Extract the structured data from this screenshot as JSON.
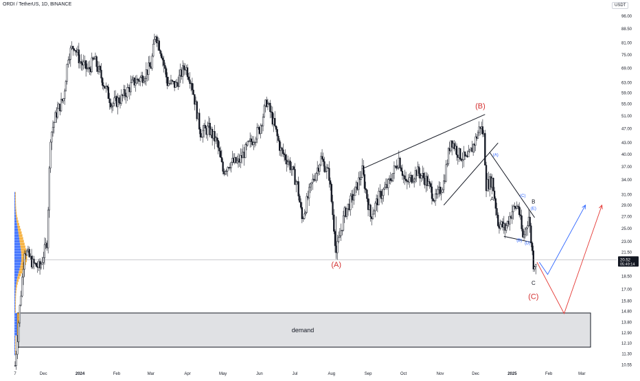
{
  "header": {
    "symbol_line": "ORDI / TetherUS, 1D, BINANCE",
    "currency": "USDT"
  },
  "price_tag": {
    "price": "20.52",
    "countdown": "05:49:14"
  },
  "chart_data": {
    "type": "candlestick",
    "title": "ORDI / TetherUS, 1D, BINANCE",
    "y_axis": {
      "scale": "log",
      "ticks": [
        "96.00",
        "88.50",
        "81.00",
        "75.00",
        "69.00",
        "63.00",
        "59.00",
        "55.00",
        "51.00",
        "47.00",
        "43.00",
        "40.00",
        "37.00",
        "34.00",
        "31.00",
        "29.00",
        "27.00",
        "25.00",
        "23.00",
        "21.50",
        "20.00",
        "18.50",
        "17.00",
        "15.80",
        "14.80",
        "13.80",
        "12.90",
        "12.10",
        "11.30",
        "10.55"
      ],
      "range": [
        10.3,
        100
      ]
    },
    "x_axis": {
      "ticks": [
        "7",
        "Dec",
        "2024",
        "Feb",
        "Mar",
        "Apr",
        "May",
        "Jun",
        "Jul",
        "Aug",
        "Sep",
        "Oct",
        "Nov",
        "Dec",
        "2025",
        "Feb",
        "Mar"
      ],
      "range": [
        "2023-11-07",
        "2025-03-20"
      ]
    },
    "grid": false,
    "last_price": 20.52,
    "approx_daily_close_path": [
      [
        "2023-11-07",
        10.5
      ],
      [
        "2023-11-15",
        22.0
      ],
      [
        "2023-11-22",
        20.0
      ],
      [
        "2023-11-28",
        19.5
      ],
      [
        "2023-12-04",
        23.0
      ],
      [
        "2023-12-07",
        45.0
      ],
      [
        "2023-12-12",
        52.0
      ],
      [
        "2023-12-18",
        57.0
      ],
      [
        "2023-12-22",
        75.0
      ],
      [
        "2023-12-27",
        80.0
      ],
      [
        "2024-01-01",
        72.0
      ],
      [
        "2024-01-08",
        68.0
      ],
      [
        "2024-01-13",
        73.0
      ],
      [
        "2024-01-20",
        64.0
      ],
      [
        "2024-01-28",
        55.0
      ],
      [
        "2024-02-05",
        57.0
      ],
      [
        "2024-02-15",
        63.0
      ],
      [
        "2024-02-22",
        65.0
      ],
      [
        "2024-03-01",
        70.0
      ],
      [
        "2024-03-05",
        86.0
      ],
      [
        "2024-03-10",
        76.0
      ],
      [
        "2024-03-15",
        63.0
      ],
      [
        "2024-03-22",
        62.0
      ],
      [
        "2024-03-30",
        70.0
      ],
      [
        "2024-04-04",
        64.0
      ],
      [
        "2024-04-12",
        46.0
      ],
      [
        "2024-04-19",
        47.0
      ],
      [
        "2024-04-26",
        43.0
      ],
      [
        "2024-05-01",
        36.0
      ],
      [
        "2024-05-07",
        38.0
      ],
      [
        "2024-05-14",
        38.0
      ],
      [
        "2024-05-22",
        42.0
      ],
      [
        "2024-06-01",
        47.0
      ],
      [
        "2024-06-07",
        56.0
      ],
      [
        "2024-06-12",
        50.0
      ],
      [
        "2024-06-19",
        41.0
      ],
      [
        "2024-06-26",
        38.0
      ],
      [
        "2024-07-03",
        33.0
      ],
      [
        "2024-07-07",
        26.5
      ],
      [
        "2024-07-15",
        33.0
      ],
      [
        "2024-07-23",
        39.0
      ],
      [
        "2024-07-30",
        35.0
      ],
      [
        "2024-08-05",
        21.5
      ],
      [
        "2024-08-12",
        27.5
      ],
      [
        "2024-08-20",
        31.0
      ],
      [
        "2024-08-27",
        36.0
      ],
      [
        "2024-09-03",
        27.0
      ],
      [
        "2024-09-10",
        30.5
      ],
      [
        "2024-09-18",
        33.0
      ],
      [
        "2024-09-27",
        39.0
      ],
      [
        "2024-10-03",
        33.0
      ],
      [
        "2024-10-12",
        36.0
      ],
      [
        "2024-10-20",
        34.0
      ],
      [
        "2024-10-28",
        30.0
      ],
      [
        "2024-11-04",
        33.5
      ],
      [
        "2024-11-10",
        44.0
      ],
      [
        "2024-11-17",
        40.0
      ],
      [
        "2024-11-24",
        38.5
      ],
      [
        "2024-12-01",
        44.0
      ],
      [
        "2024-12-05",
        48.0
      ],
      [
        "2024-12-08",
        45.0
      ],
      [
        "2024-12-10",
        33.0
      ],
      [
        "2024-12-15",
        34.0
      ],
      [
        "2024-12-20",
        26.0
      ],
      [
        "2024-12-26",
        25.0
      ],
      [
        "2025-01-01",
        28.0
      ],
      [
        "2025-01-06",
        29.0
      ],
      [
        "2025-01-10",
        23.5
      ],
      [
        "2025-01-15",
        27.0
      ],
      [
        "2025-01-19",
        20.0
      ],
      [
        "2025-01-22",
        20.52
      ]
    ],
    "demand_zone": {
      "label": "demand",
      "top": 14.65,
      "bottom": 11.8,
      "from": "2023-11-07",
      "to": "2025-03-20"
    },
    "wave_labels": [
      {
        "text": "(A)",
        "color": "#d32f2f",
        "date": "2024-08-05",
        "price": 19.6
      },
      {
        "text": "(B)",
        "color": "#d32f2f",
        "date": "2024-12-05",
        "price": 53.5
      },
      {
        "text": "(C)",
        "color": "#d32f2f",
        "date": "2025-01-19",
        "price": 16.0
      },
      {
        "text": "A",
        "color": "#131722",
        "date": "2024-12-15",
        "price": 29.8
      },
      {
        "text": "B",
        "color": "#131722",
        "date": "2025-01-19",
        "price": 29.3
      },
      {
        "text": "C",
        "color": "#131722",
        "date": "2025-01-19",
        "price": 17.5
      },
      {
        "text": "(A)",
        "color": "#2962ff",
        "date": "2024-12-18",
        "price": 39.5
      },
      {
        "text": "(B)",
        "color": "#2962ff",
        "date": "2025-01-07",
        "price": 23.0
      },
      {
        "text": "(C)",
        "color": "#2962ff",
        "date": "2025-01-10",
        "price": 30.5
      },
      {
        "text": "(D)",
        "color": "#2962ff",
        "date": "2025-01-14",
        "price": 22.6
      },
      {
        "text": "(E)",
        "color": "#2962ff",
        "date": "2025-01-19",
        "price": 28.2
      }
    ],
    "trendlines": [
      {
        "color": "#131722",
        "from": [
          "2024-08-27",
          36.5
        ],
        "to": [
          "2024-12-09",
          51.5
        ]
      },
      {
        "color": "#131722",
        "from": [
          "2024-11-04",
          29.0
        ],
        "to": [
          "2024-12-20",
          43.0
        ]
      },
      {
        "color": "#131722",
        "from": [
          "2024-12-13",
          40.5
        ],
        "to": [
          "2025-01-20",
          26.8
        ]
      },
      {
        "color": "#131722",
        "from": [
          "2024-12-25",
          23.8
        ],
        "to": [
          "2025-01-18",
          22.9
        ]
      },
      {
        "color": "#2962ff",
        "from": [
          "2025-01-24",
          20.2
        ],
        "to": [
          "2025-01-31",
          18.7
        ],
        "then": [
          "2025-03-04",
          29.0
        ]
      },
      {
        "color": "#e53935",
        "from": [
          "2025-01-22",
          20.2
        ],
        "to": [
          "2025-02-14",
          14.6
        ],
        "then": [
          "2025-03-18",
          29.0
        ]
      }
    ],
    "colors": {
      "up": "#131722",
      "down": "#131722",
      "volume_profile": "#2962ff",
      "volume_profile_alt": "#f5a623",
      "demand_fill": "#e0e1e4"
    }
  }
}
